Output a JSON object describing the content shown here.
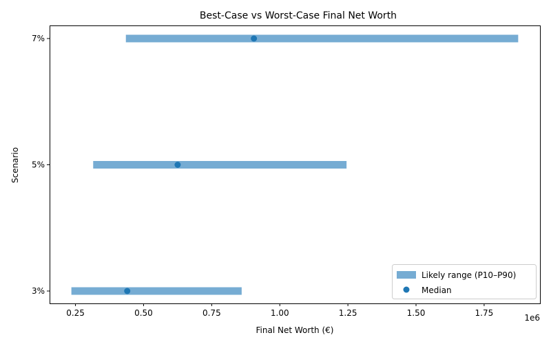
{
  "chart_data": {
    "type": "range",
    "title": "Best-Case vs Worst-Case Final Net Worth",
    "xlabel": "Final Net Worth (€)",
    "ylabel": "Scenario",
    "x_offset_label": "1e6",
    "xlim": [
      0.155,
      1.955
    ],
    "x_ticks": [
      0.25,
      0.5,
      0.75,
      1.0,
      1.25,
      1.5,
      1.75
    ],
    "x_tick_labels": [
      "0.25",
      "0.50",
      "0.75",
      "1.00",
      "1.25",
      "1.50",
      "1.75"
    ],
    "categories": [
      "3%",
      "5%",
      "7%"
    ],
    "series": [
      {
        "name": "Likely range (P10–P90)",
        "color": "#76acd3",
        "low": [
          0.235,
          0.315,
          0.435
        ],
        "high": [
          0.86,
          1.245,
          1.875
        ]
      },
      {
        "name": "Median",
        "color": "#1f77b4",
        "values": [
          0.44,
          0.625,
          0.905
        ]
      }
    ],
    "grid": false,
    "legend_position": "lower right"
  }
}
